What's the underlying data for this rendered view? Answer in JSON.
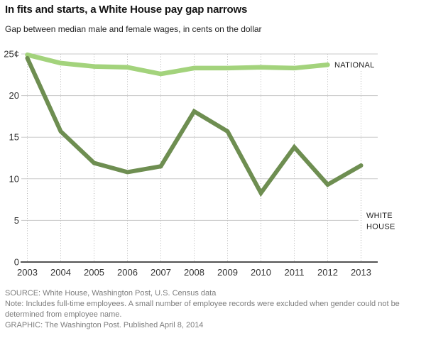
{
  "header": {
    "title": "In fits and starts, a White House pay gap narrows",
    "subtitle": "Gap between median male and female wages, in cents on the dollar"
  },
  "footer": {
    "source": "SOURCE: White House, Washington Post, U.S. Census data",
    "note": "Note: Includes full-time employees. A small number of employee records were excluded when gender could not be determined from employee name.",
    "graphic": "GRAPHIC: The Washington Post. Published April 8, 2014"
  },
  "chart_data": {
    "type": "line",
    "title": "In fits and starts, a White House pay gap narrows",
    "subtitle": "Gap between median male and female wages, in cents on the dollar",
    "x": [
      2003,
      2004,
      2005,
      2006,
      2007,
      2008,
      2009,
      2010,
      2011,
      2012,
      2013
    ],
    "x_tick_labels": [
      "2003",
      "2004",
      "2005",
      "2006",
      "2007",
      "2008",
      "2009",
      "2010",
      "2011",
      "2012",
      "2013"
    ],
    "y_ticks": [
      25,
      20,
      15,
      10,
      5,
      0
    ],
    "y_tick_labels": [
      "25¢",
      "20",
      "15",
      "10",
      "5",
      "0"
    ],
    "ylim": [
      0,
      25
    ],
    "xlabel": "",
    "ylabel": "cents on the dollar",
    "grid": {
      "horizontal": "solid",
      "vertical": "dotted"
    },
    "legend_position": "inline-right",
    "series": [
      {
        "id": "national",
        "name": "NATIONAL",
        "label_lines": [
          "NATIONAL"
        ],
        "color": "#a3d37c",
        "x": [
          2003,
          2004,
          2005,
          2006,
          2007,
          2008,
          2009,
          2010,
          2011,
          2012
        ],
        "values": [
          24.9,
          23.9,
          23.5,
          23.4,
          22.6,
          23.3,
          23.3,
          23.4,
          23.3,
          23.7
        ]
      },
      {
        "id": "white-house",
        "name": "WHITE HOUSE",
        "label_lines": [
          "WHITE",
          "HOUSE"
        ],
        "color": "#6e8e51",
        "x": [
          2003,
          2004,
          2005,
          2006,
          2007,
          2008,
          2009,
          2010,
          2011,
          2012,
          2013
        ],
        "values": [
          24.5,
          15.7,
          11.9,
          10.8,
          11.5,
          18.1,
          15.7,
          8.3,
          13.8,
          9.3,
          11.6
        ]
      }
    ]
  }
}
